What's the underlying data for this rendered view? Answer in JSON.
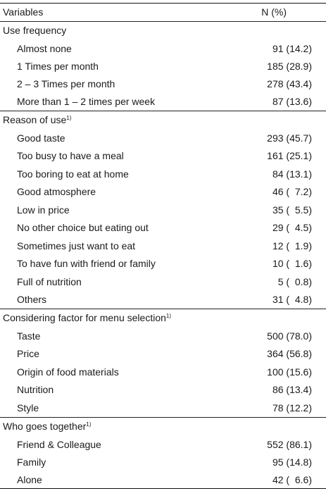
{
  "header": {
    "variables": "Variables",
    "n_pct": "N (%)"
  },
  "sections": [
    {
      "title": "Use frequency",
      "footnote": "",
      "rows": [
        {
          "label": "Almost none",
          "value": "91 (14.2)"
        },
        {
          "label": "1 Times per month",
          "value": "185 (28.9)"
        },
        {
          "label": "2 – 3 Times per month",
          "value": "278 (43.4)"
        },
        {
          "label": "More than 1 – 2 times per week",
          "value": "87 (13.6)"
        }
      ]
    },
    {
      "title": "Reason of use",
      "footnote": "1)",
      "rows": [
        {
          "label": "Good taste",
          "value": "293 (45.7)"
        },
        {
          "label": "Too busy to have a meal",
          "value": "161 (25.1)"
        },
        {
          "label": "Too boring to eat at home",
          "value": "84 (13.1)"
        },
        {
          "label": "Good atmosphere",
          "value": "46 (  7.2)"
        },
        {
          "label": "Low in price",
          "value": "35 (  5.5)"
        },
        {
          "label": "No other choice but eating out",
          "value": "29 (  4.5)"
        },
        {
          "label": "Sometimes just want to eat",
          "value": "12 (  1.9)"
        },
        {
          "label": "To have fun with friend or family",
          "value": "10 (  1.6)"
        },
        {
          "label": "Full of nutrition",
          "value": "5 (  0.8)"
        },
        {
          "label": "Others",
          "value": "31 (  4.8)"
        }
      ]
    },
    {
      "title": "Considering factor for menu selection",
      "footnote": "1)",
      "rows": [
        {
          "label": "Taste",
          "value": "500 (78.0)"
        },
        {
          "label": "Price",
          "value": "364 (56.8)"
        },
        {
          "label": "Origin of food materials",
          "value": "100 (15.6)"
        },
        {
          "label": "Nutrition",
          "value": "86 (13.4)"
        },
        {
          "label": "Style",
          "value": "78 (12.2)"
        }
      ]
    },
    {
      "title": "Who goes together",
      "footnote": "1)",
      "rows": [
        {
          "label": "Friend & Colleague",
          "value": "552 (86.1)"
        },
        {
          "label": "Family",
          "value": "95 (14.8)"
        },
        {
          "label": "Alone",
          "value": "42 (  6.6)"
        }
      ]
    }
  ]
}
